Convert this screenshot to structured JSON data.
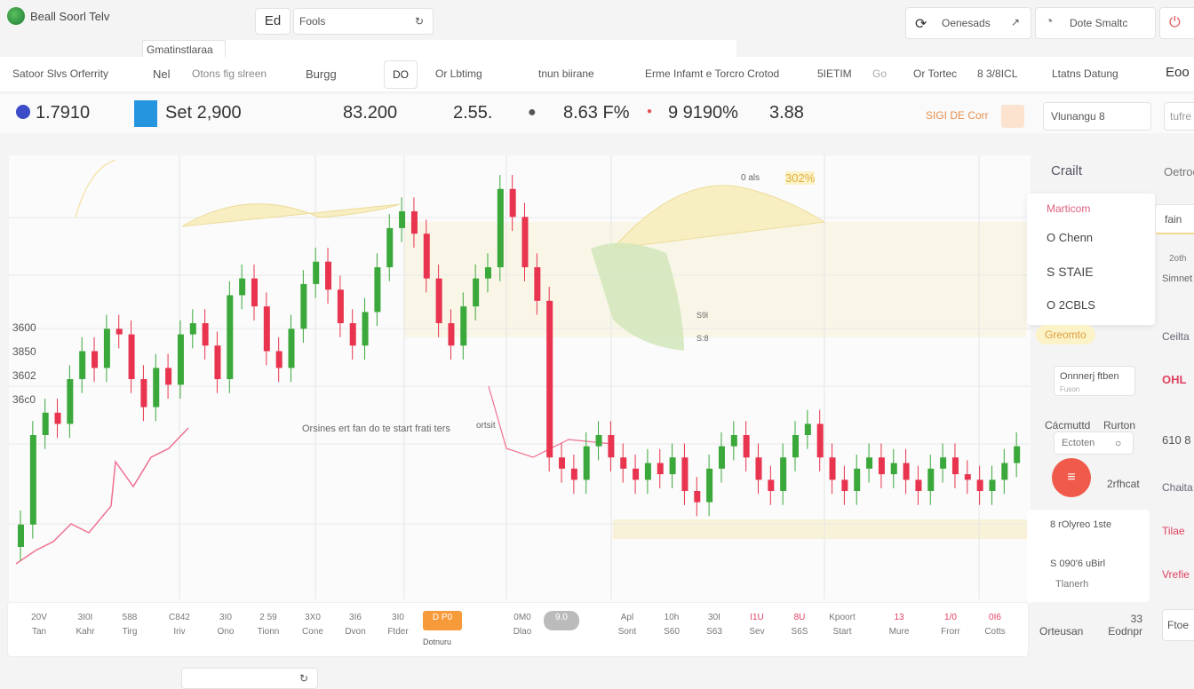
{
  "app": {
    "title": "Beall Soorl Telv",
    "logo_icon": "globe-icon"
  },
  "top": {
    "ed_button": "Ed",
    "search_value": "Fools",
    "tab_label": "Gmatinstlaraa",
    "right_buttons": [
      {
        "label": "Oenesads",
        "icon": "refresh-icon"
      },
      {
        "label": "Dote  Smaltc",
        "icon": "clock-icon"
      },
      {
        "label": "",
        "icon": "power-icon"
      }
    ]
  },
  "toolbar": {
    "items": [
      "Satoor Slvs Orferrity",
      "Nel",
      "Otons fig slreen",
      "Burgg",
      "DO",
      "Or Lbtimg",
      "tnun biirane",
      "Erme Infamt e Torcro Crotod",
      "5IETIM",
      "Go",
      "Or Tortec",
      "8 3/8ICL",
      "Ltatns Datung",
      "Eoo"
    ]
  },
  "stats": {
    "items": [
      "1.7910",
      "Set 2,900",
      "83.200",
      "2.55.",
      "8.63 F%",
      "9  9190%",
      "3.88"
    ],
    "status": "SIGI DE Corr",
    "select": "Vlunangu 8",
    "extra": "tufre"
  },
  "chart_data": {
    "type": "candlestick",
    "y_tick_labels": [
      "3600",
      "3850",
      "3602",
      "36c0"
    ],
    "annotations": [
      "Orsines ert fan do te start frati ters",
      "ortsit",
      "0 als",
      "302%",
      "S9l",
      "S:8"
    ],
    "colors": {
      "up": "#3aa83a",
      "down": "#e8344e",
      "band": "#f7eec2",
      "overlay": "#ef6f8f"
    },
    "close": [
      3440,
      3600,
      3640,
      3620,
      3700,
      3750,
      3720,
      3790,
      3780,
      3700,
      3650,
      3720,
      3690,
      3780,
      3800,
      3760,
      3700,
      3850,
      3880,
      3830,
      3750,
      3720,
      3790,
      3870,
      3910,
      3860,
      3800,
      3760,
      3820,
      3900,
      3970,
      4000,
      3960,
      3880,
      3800,
      3760,
      3830,
      3880,
      3900,
      4040,
      3990,
      3900,
      3840,
      3560,
      3540,
      3520,
      3580,
      3600,
      3560,
      3540,
      3520,
      3550,
      3530,
      3560,
      3500,
      3480,
      3540,
      3580,
      3600,
      3560,
      3520,
      3500,
      3560,
      3600,
      3620,
      3560,
      3520,
      3500,
      3540,
      3560,
      3530,
      3550,
      3520,
      3500,
      3540,
      3560,
      3530,
      3520,
      3500,
      3520,
      3550,
      3580
    ]
  },
  "timeline": {
    "items": [
      [
        "20V",
        "Tan"
      ],
      [
        "3I0I",
        "Kahr"
      ],
      [
        "588",
        "Tirg"
      ],
      [
        "C842",
        "Iriv"
      ],
      [
        "3I0",
        "Ono"
      ],
      [
        "2 59",
        "Tionn"
      ],
      [
        "3X0",
        "Cone"
      ],
      [
        "3I6",
        "Dvon"
      ],
      [
        "3I0",
        "Ftder"
      ],
      [
        "D P0",
        "Dotnuru"
      ],
      [
        "0M0",
        "Dlao"
      ],
      [
        "9.0",
        ""
      ],
      [
        "Apl",
        "Sont"
      ],
      [
        "10h",
        "S60"
      ],
      [
        "30I",
        "S63"
      ],
      [
        "I1U",
        "Sev"
      ],
      [
        "8U",
        "S6S"
      ],
      [
        "Kpoort",
        "Start"
      ],
      [
        "13",
        "Mure"
      ],
      [
        "1/0",
        "Frorr"
      ],
      [
        "0I6",
        "Cotts"
      ]
    ],
    "right": [
      "Orteusan",
      "33 Eodnpr",
      "Ftoe"
    ]
  },
  "panel": {
    "title": "Crailt",
    "menu": [
      "Marticom",
      "O Chenn",
      "S STAIE",
      "O 2CBLS"
    ],
    "highlight": "Greomto",
    "field1": "Onnnerj ftben",
    "field1_sub": "Fuson",
    "field2_label": "Cácmuttd",
    "field2_right": "Rurton",
    "field2_value": "Ectoten",
    "fab_label": "2rfhcat",
    "list": [
      "8 rOlyreo 1ste",
      "S 090'6 uBirl",
      "Tlanerh"
    ]
  },
  "panel2": {
    "title": "Oetrook",
    "input": "fain",
    "items": [
      "2oth",
      "Simnet",
      "Ceilta",
      "OHL",
      "610 8",
      "Chaita",
      "Tilae",
      "Vrefie"
    ]
  }
}
